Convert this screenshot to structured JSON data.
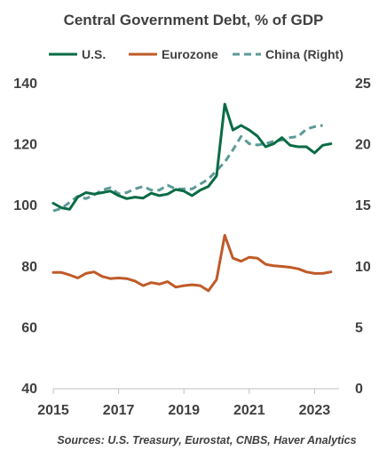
{
  "chart_data": {
    "type": "line",
    "title": "Central Government Debt, % of GDP",
    "source": "Sources: U.S. Treasury, Eurostat, CNBS, Haver Analytics",
    "xlim": [
      2015.0,
      2023.75
    ],
    "x_ticks": [
      "2015",
      "2017",
      "2019",
      "2021",
      "2023"
    ],
    "y_left": {
      "range": [
        40,
        140
      ],
      "ticks": [
        "40",
        "60",
        "80",
        "100",
        "120",
        "140"
      ]
    },
    "y_right": {
      "range": [
        0,
        25
      ],
      "ticks": [
        "0",
        "5",
        "10",
        "15",
        "20",
        "25"
      ]
    },
    "grid": false,
    "legend_position": "top",
    "series": [
      {
        "name": "U.S.",
        "axis": "left",
        "color": "#0a6b44",
        "dash": "solid",
        "x": [
          2015.0,
          2015.25,
          2015.5,
          2015.75,
          2016.0,
          2016.25,
          2016.5,
          2016.75,
          2017.0,
          2017.25,
          2017.5,
          2017.75,
          2018.0,
          2018.25,
          2018.5,
          2018.75,
          2019.0,
          2019.25,
          2019.5,
          2019.75,
          2020.0,
          2020.25,
          2020.5,
          2020.75,
          2021.0,
          2021.25,
          2021.5,
          2021.75,
          2022.0,
          2022.25,
          2022.5,
          2022.75,
          2023.0,
          2023.25,
          2023.5
        ],
        "y": [
          100.5,
          99.0,
          98.5,
          102.5,
          104.0,
          103.5,
          104.0,
          104.5,
          103.0,
          102.0,
          102.5,
          102.2,
          103.8,
          103.0,
          103.5,
          105.0,
          104.5,
          103.0,
          104.8,
          106.0,
          109.5,
          133.0,
          124.5,
          126.0,
          124.5,
          122.5,
          119.0,
          120.0,
          122.0,
          119.5,
          119.0,
          119.0,
          117.0,
          119.5,
          120.0
        ]
      },
      {
        "name": "Eurozone",
        "axis": "left",
        "color": "#c05a28",
        "dash": "solid",
        "x": [
          2015.0,
          2015.25,
          2015.5,
          2015.75,
          2016.0,
          2016.25,
          2016.5,
          2016.75,
          2017.0,
          2017.25,
          2017.5,
          2017.75,
          2018.0,
          2018.25,
          2018.5,
          2018.75,
          2019.0,
          2019.25,
          2019.5,
          2019.75,
          2020.0,
          2020.25,
          2020.5,
          2020.75,
          2021.0,
          2021.25,
          2021.5,
          2021.75,
          2022.0,
          2022.25,
          2022.5,
          2022.75,
          2023.0,
          2023.25,
          2023.5
        ],
        "y": [
          77.8,
          77.8,
          77.0,
          76.0,
          77.5,
          78.0,
          76.5,
          75.8,
          76.0,
          75.8,
          75.0,
          73.5,
          74.5,
          74.0,
          74.8,
          73.0,
          73.5,
          73.8,
          73.5,
          71.8,
          75.5,
          90.0,
          82.5,
          81.5,
          82.8,
          82.5,
          80.5,
          80.0,
          79.8,
          79.5,
          79.0,
          78.0,
          77.5,
          77.5,
          78.0
        ]
      },
      {
        "name": "China (Right)",
        "axis": "right",
        "color": "#5b9a98",
        "dash": "dashed",
        "x": [
          2015.0,
          2015.25,
          2015.5,
          2015.75,
          2016.0,
          2016.25,
          2016.5,
          2016.75,
          2017.0,
          2017.25,
          2017.5,
          2017.75,
          2018.0,
          2018.25,
          2018.5,
          2018.75,
          2019.0,
          2019.25,
          2019.5,
          2019.75,
          2020.0,
          2020.25,
          2020.5,
          2020.75,
          2021.0,
          2021.25,
          2021.5,
          2021.75,
          2022.0,
          2022.25,
          2022.5,
          2022.75,
          2023.0,
          2023.25
        ],
        "y": [
          14.5,
          14.7,
          15.2,
          15.7,
          15.5,
          15.8,
          16.2,
          16.4,
          15.9,
          16.0,
          16.3,
          16.5,
          16.2,
          16.2,
          16.6,
          16.3,
          16.3,
          16.3,
          16.7,
          17.1,
          17.8,
          18.5,
          19.5,
          20.6,
          20.0,
          19.9,
          20.0,
          20.2,
          20.3,
          20.5,
          20.6,
          21.2,
          21.4,
          21.5
        ]
      }
    ]
  }
}
